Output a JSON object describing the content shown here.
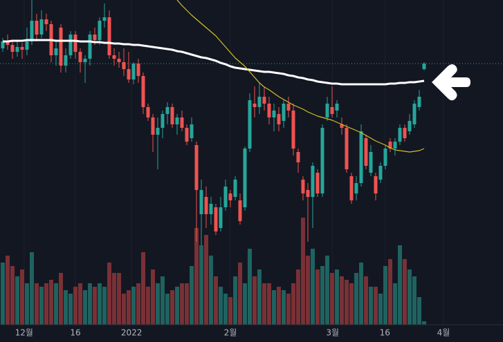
{
  "chart_data": {
    "type": "candlestick",
    "xlim": [
      -0.57,
      103.29
    ],
    "ylim": [
      0,
      470
    ],
    "xticks": [
      {
        "value": 4.4,
        "label": "12월"
      },
      {
        "value": 15,
        "label": "16"
      },
      {
        "value": 26.6,
        "label": "2022"
      },
      {
        "value": 47,
        "label": "2월"
      },
      {
        "value": 68.1,
        "label": "3월"
      },
      {
        "value": 78.9,
        "label": "16"
      },
      {
        "value": 91,
        "label": "4월"
      }
    ],
    "up_color": "#26a69a",
    "down_color": "#ef5350",
    "up_volume_color": "#1f6360",
    "down_volume_color": "#7a3136",
    "open": [
      400,
      410,
      405,
      395,
      402,
      398,
      410,
      440,
      420,
      442,
      435,
      390,
      430,
      375,
      390,
      420,
      395,
      380,
      385,
      420,
      412,
      440,
      445,
      390,
      385,
      380,
      370,
      355,
      378,
      360,
      315,
      300,
      275,
      285,
      305,
      315,
      290,
      300,
      285,
      270,
      260,
      160,
      185,
      160,
      170,
      140,
      170,
      190,
      185,
      180,
      170,
      255,
      320,
      315,
      330,
      320,
      300,
      305,
      295,
      320,
      310,
      250,
      210,
      195,
      185,
      220,
      190,
      300,
      315,
      310,
      290,
      285,
      215,
      190,
      205,
      270,
      220,
      215,
      210,
      230,
      265,
      255,
      265,
      285,
      280,
      290,
      315,
      370
    ],
    "high": [
      415,
      420,
      412,
      410,
      408,
      430,
      470,
      450,
      455,
      450,
      440,
      410,
      435,
      400,
      425,
      425,
      400,
      390,
      425,
      430,
      445,
      465,
      455,
      400,
      395,
      400,
      395,
      380,
      385,
      365,
      320,
      305,
      300,
      310,
      322,
      320,
      305,
      310,
      290,
      300,
      265,
      210,
      200,
      185,
      175,
      185,
      210,
      195,
      215,
      190,
      258,
      335,
      345,
      350,
      345,
      330,
      320,
      315,
      325,
      330,
      320,
      255,
      215,
      205,
      235,
      225,
      290,
      330,
      345,
      325,
      300,
      290,
      220,
      215,
      290,
      275,
      260,
      220,
      235,
      260,
      270,
      270,
      290,
      290,
      305,
      325,
      340,
      380
    ],
    "low": [
      395,
      398,
      385,
      388,
      385,
      390,
      405,
      410,
      415,
      425,
      380,
      375,
      365,
      365,
      385,
      385,
      365,
      350,
      375,
      405,
      405,
      430,
      385,
      375,
      372,
      360,
      350,
      348,
      350,
      305,
      295,
      250,
      225,
      270,
      290,
      285,
      275,
      280,
      260,
      265,
      120,
      115,
      140,
      145,
      130,
      135,
      165,
      170,
      180,
      145,
      165,
      250,
      300,
      305,
      310,
      290,
      280,
      280,
      285,
      300,
      245,
      220,
      180,
      120,
      140,
      185,
      185,
      295,
      300,
      300,
      275,
      220,
      175,
      180,
      200,
      225,
      215,
      180,
      205,
      225,
      250,
      245,
      260,
      265,
      275,
      285,
      310,
      368
    ],
    "close": [
      410,
      405,
      395,
      402,
      398,
      410,
      440,
      420,
      442,
      435,
      390,
      400,
      375,
      390,
      420,
      395,
      380,
      385,
      420,
      412,
      440,
      445,
      390,
      385,
      380,
      370,
      355,
      378,
      360,
      315,
      300,
      275,
      285,
      305,
      315,
      290,
      300,
      285,
      265,
      290,
      195,
      195,
      160,
      175,
      135,
      170,
      200,
      180,
      210,
      150,
      255,
      325,
      315,
      330,
      320,
      300,
      310,
      290,
      320,
      310,
      255,
      235,
      190,
      185,
      230,
      190,
      285,
      320,
      305,
      320,
      285,
      225,
      180,
      205,
      280,
      230,
      250,
      190,
      230,
      255,
      255,
      265,
      285,
      270,
      295,
      320,
      330,
      378
    ],
    "volume": [
      90,
      100,
      85,
      70,
      80,
      60,
      105,
      60,
      55,
      60,
      65,
      60,
      75,
      50,
      45,
      55,
      60,
      50,
      60,
      55,
      60,
      55,
      90,
      75,
      75,
      45,
      50,
      55,
      60,
      105,
      55,
      80,
      60,
      70,
      45,
      50,
      55,
      60,
      60,
      85,
      140,
      115,
      130,
      100,
      70,
      55,
      45,
      40,
      70,
      90,
      60,
      110,
      70,
      80,
      60,
      60,
      50,
      55,
      50,
      45,
      60,
      80,
      155,
      100,
      110,
      80,
      85,
      100,
      75,
      80,
      70,
      65,
      60,
      75,
      90,
      70,
      55,
      55,
      45,
      85,
      95,
      60,
      115,
      95,
      80,
      70,
      40,
      5
    ],
    "series": [
      {
        "color": "#ffffff",
        "values": [
          410,
          410,
          411,
          411,
          411,
          412,
          412,
          412,
          412,
          412,
          412,
          411,
          411,
          411,
          411,
          411,
          410,
          410,
          410,
          409,
          409,
          408,
          408,
          407,
          407,
          406,
          406,
          405,
          405,
          404,
          403,
          402,
          401,
          400,
          399,
          398,
          396,
          395,
          393,
          391,
          389,
          387,
          386,
          384,
          382,
          379,
          377,
          374,
          372,
          371,
          370,
          369,
          368,
          367,
          366,
          366,
          365,
          364,
          363,
          361,
          360,
          358,
          357,
          355,
          354,
          352,
          351,
          350,
          349,
          349,
          348,
          348,
          348,
          348,
          348,
          348,
          348,
          348,
          348,
          348,
          349,
          349,
          350,
          350,
          351,
          351,
          352,
          353
        ]
      },
      {
        "color": "#d4c125",
        "values": [
          null,
          null,
          null,
          null,
          null,
          null,
          null,
          null,
          null,
          null,
          null,
          null,
          null,
          null,
          null,
          null,
          null,
          null,
          null,
          null,
          null,
          null,
          null,
          null,
          null,
          null,
          null,
          null,
          null,
          null,
          null,
          null,
          null,
          null,
          null,
          null,
          470,
          462,
          455,
          448,
          442,
          436,
          430,
          424,
          418,
          410,
          402,
          394,
          386,
          380,
          374,
          366,
          358,
          350,
          344,
          340,
          335,
          330,
          326,
          322,
          318,
          315,
          312,
          308,
          305,
          302,
          300,
          298,
          296,
          293,
          290,
          287,
          284,
          281,
          278,
          274,
          270,
          266,
          263,
          260,
          256,
          253,
          252,
          251,
          250,
          251,
          252,
          255
        ]
      }
    ]
  }
}
